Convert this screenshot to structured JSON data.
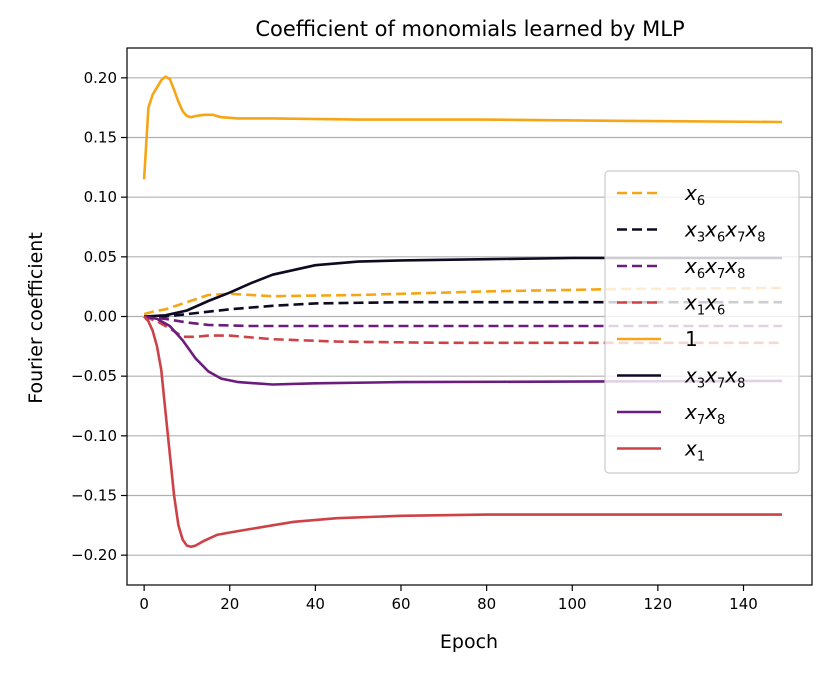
{
  "chart_data": {
    "type": "line",
    "title": "Coefficient of monomials learned by MLP",
    "xlabel": "Epoch",
    "ylabel": "Fourier coefficient",
    "xlim": [
      -4,
      156
    ],
    "ylim": [
      -0.225,
      0.225
    ],
    "x_ticks": [
      0,
      20,
      40,
      60,
      80,
      100,
      120,
      140
    ],
    "y_ticks": [
      -0.2,
      -0.15,
      -0.1,
      -0.05,
      0.0,
      0.05,
      0.1,
      0.15,
      0.2
    ],
    "y_tick_labels": [
      "−0.20",
      "−0.15",
      "−0.10",
      "−0.05",
      "0.00",
      "0.05",
      "0.10",
      "0.15",
      "0.20"
    ],
    "grid": "horizontal",
    "legend_position": "center-right",
    "series": [
      {
        "name": "x6",
        "legend_base": [
          "x"
        ],
        "legend_sub": [
          "6"
        ],
        "color": "#f5a515",
        "dash": true,
        "points": [
          [
            0,
            0.002
          ],
          [
            2,
            0.004
          ],
          [
            5,
            0.006
          ],
          [
            10,
            0.012
          ],
          [
            15,
            0.018
          ],
          [
            20,
            0.019
          ],
          [
            30,
            0.017
          ],
          [
            50,
            0.018
          ],
          [
            80,
            0.021
          ],
          [
            110,
            0.023
          ],
          [
            149,
            0.024
          ]
        ]
      },
      {
        "name": "x3x6x7x8",
        "legend_base": [
          "x",
          "x",
          "x",
          "x"
        ],
        "legend_sub": [
          "3",
          "6",
          "7",
          "8"
        ],
        "color": "#0d0a22",
        "dash": true,
        "points": [
          [
            0,
            0.0
          ],
          [
            5,
            0.0
          ],
          [
            10,
            0.002
          ],
          [
            20,
            0.006
          ],
          [
            30,
            0.009
          ],
          [
            40,
            0.011
          ],
          [
            60,
            0.012
          ],
          [
            149,
            0.012
          ]
        ]
      },
      {
        "name": "x6x7x8",
        "legend_base": [
          "x",
          "x",
          "x"
        ],
        "legend_sub": [
          "6",
          "7",
          "8"
        ],
        "color": "#6b1d7d",
        "dash": true,
        "points": [
          [
            0,
            0.0
          ],
          [
            5,
            -0.002
          ],
          [
            10,
            -0.005
          ],
          [
            15,
            -0.007
          ],
          [
            25,
            -0.008
          ],
          [
            50,
            -0.008
          ],
          [
            149,
            -0.008
          ]
        ]
      },
      {
        "name": "x1x6",
        "legend_base": [
          "x",
          "x"
        ],
        "legend_sub": [
          "1",
          "6"
        ],
        "color": "#cc4247",
        "dash": true,
        "points": [
          [
            0,
            0.0
          ],
          [
            3,
            -0.004
          ],
          [
            6,
            -0.01
          ],
          [
            9,
            -0.017
          ],
          [
            12,
            -0.017
          ],
          [
            15,
            -0.016
          ],
          [
            20,
            -0.016
          ],
          [
            30,
            -0.019
          ],
          [
            45,
            -0.021
          ],
          [
            70,
            -0.022
          ],
          [
            149,
            -0.022
          ]
        ]
      },
      {
        "name": "1",
        "legend_base": [
          "1"
        ],
        "legend_sub": [
          ""
        ],
        "color": "#f5a515",
        "dash": false,
        "points": [
          [
            0,
            0.115
          ],
          [
            1,
            0.175
          ],
          [
            2,
            0.186
          ],
          [
            3,
            0.192
          ],
          [
            4,
            0.198
          ],
          [
            5,
            0.201
          ],
          [
            6,
            0.199
          ],
          [
            7,
            0.19
          ],
          [
            8,
            0.18
          ],
          [
            9,
            0.172
          ],
          [
            10,
            0.168
          ],
          [
            11,
            0.167
          ],
          [
            12,
            0.168
          ],
          [
            14,
            0.169
          ],
          [
            16,
            0.169
          ],
          [
            18,
            0.167
          ],
          [
            22,
            0.166
          ],
          [
            30,
            0.166
          ],
          [
            50,
            0.165
          ],
          [
            80,
            0.165
          ],
          [
            110,
            0.164
          ],
          [
            149,
            0.163
          ]
        ]
      },
      {
        "name": "x3x7x8",
        "legend_base": [
          "x",
          "x",
          "x"
        ],
        "legend_sub": [
          "3",
          "7",
          "8"
        ],
        "color": "#0d0a22",
        "dash": false,
        "points": [
          [
            0,
            0.0
          ],
          [
            5,
            0.001
          ],
          [
            10,
            0.005
          ],
          [
            15,
            0.013
          ],
          [
            20,
            0.02
          ],
          [
            25,
            0.028
          ],
          [
            30,
            0.035
          ],
          [
            40,
            0.043
          ],
          [
            50,
            0.046
          ],
          [
            60,
            0.047
          ],
          [
            80,
            0.048
          ],
          [
            100,
            0.049
          ],
          [
            149,
            0.049
          ]
        ]
      },
      {
        "name": "x7x8",
        "legend_base": [
          "x",
          "x"
        ],
        "legend_sub": [
          "7",
          "8"
        ],
        "color": "#6b1d7d",
        "dash": false,
        "points": [
          [
            0,
            0.0
          ],
          [
            3,
            -0.002
          ],
          [
            6,
            -0.008
          ],
          [
            9,
            -0.02
          ],
          [
            12,
            -0.035
          ],
          [
            15,
            -0.046
          ],
          [
            18,
            -0.052
          ],
          [
            22,
            -0.055
          ],
          [
            30,
            -0.057
          ],
          [
            40,
            -0.056
          ],
          [
            60,
            -0.055
          ],
          [
            149,
            -0.054
          ]
        ]
      },
      {
        "name": "x1",
        "legend_base": [
          "x"
        ],
        "legend_sub": [
          "1"
        ],
        "color": "#cc4247",
        "dash": false,
        "points": [
          [
            0,
            0.0
          ],
          [
            1,
            -0.004
          ],
          [
            2,
            -0.012
          ],
          [
            3,
            -0.025
          ],
          [
            4,
            -0.045
          ],
          [
            5,
            -0.08
          ],
          [
            6,
            -0.115
          ],
          [
            7,
            -0.15
          ],
          [
            8,
            -0.175
          ],
          [
            9,
            -0.187
          ],
          [
            10,
            -0.192
          ],
          [
            11,
            -0.193
          ],
          [
            12,
            -0.192
          ],
          [
            14,
            -0.188
          ],
          [
            17,
            -0.183
          ],
          [
            20,
            -0.181
          ],
          [
            25,
            -0.178
          ],
          [
            30,
            -0.175
          ],
          [
            35,
            -0.172
          ],
          [
            45,
            -0.169
          ],
          [
            60,
            -0.167
          ],
          [
            80,
            -0.166
          ],
          [
            149,
            -0.166
          ]
        ]
      }
    ]
  }
}
